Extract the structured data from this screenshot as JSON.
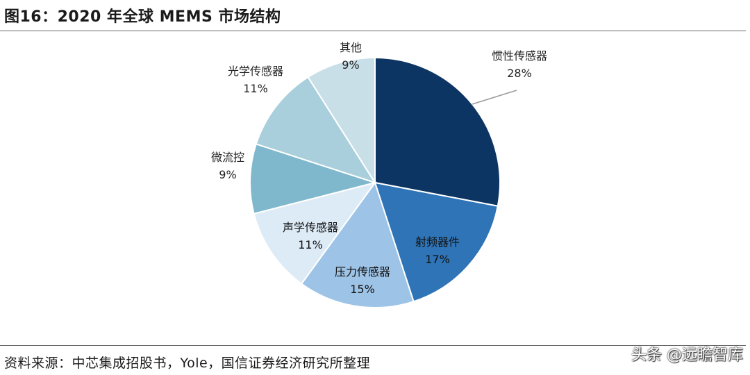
{
  "title": "图16：2020 年全球 MEMS 市场结构",
  "source": "资料来源：中芯集成招股书，Yole，国信证券经济研究所整理",
  "watermark": "头条 @远瞻智库",
  "chart_data": {
    "type": "pie",
    "title": "图16：2020 年全球 MEMS 市场结构",
    "start": "12 o'clock",
    "direction": "clockwise",
    "slices": [
      {
        "label": "惯性传感器",
        "value": 28,
        "display": "28%",
        "color": "#0c3563"
      },
      {
        "label": "射频器件",
        "value": 17,
        "display": "17%",
        "color": "#2e74b6"
      },
      {
        "label": "压力传感器",
        "value": 15,
        "display": "15%",
        "color": "#9dc3e6"
      },
      {
        "label": "声学传感器",
        "value": 11,
        "display": "11%",
        "color": "#ddebf7"
      },
      {
        "label": "微流控",
        "value": 9,
        "display": "9%",
        "color": "#7fb8cd"
      },
      {
        "label": "光学传感器",
        "value": 11,
        "display": "11%",
        "color": "#aacfdc"
      },
      {
        "label": "其他",
        "value": 9,
        "display": "9%",
        "color": "#c9dfe8"
      }
    ]
  }
}
